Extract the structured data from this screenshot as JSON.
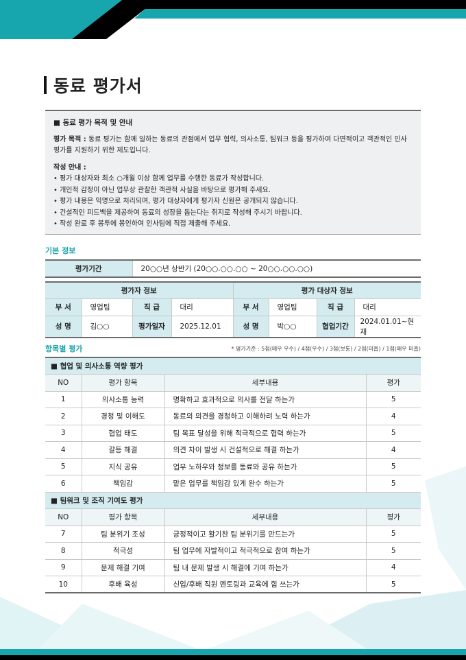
{
  "colors": {
    "teal": "#1aa3ad",
    "label_bg": "#d4ecef",
    "black": "#000000"
  },
  "title": "동료 평가서",
  "guide": {
    "heading": "■ 동료 평가 목적 및 안내",
    "purpose_label": "평가 목적 :",
    "purpose_text": " 동료 평가는 함께 일하는 동료의 관점에서 업무 협력, 의사소통, 팀워크 등을 평가하여 다면적이고 객관적인 인사평가를 지원하기 위한 제도입니다.",
    "instructions_label": "작성 안내 :",
    "instructions": [
      "평가 대상자와 최소 ○개월 이상 함께 업무를 수행한 동료가 작성합니다.",
      "개인적 감정이 아닌 업무상 관찰한 객관적 사실을 바탕으로 평가해 주세요.",
      "평가 내용은 익명으로 처리되며, 평가 대상자에게 평가자 신원은 공개되지 않습니다.",
      "건설적인 피드백을 제공하여 동료의 성장을 돕는다는 취지로 작성해 주시기 바랍니다.",
      "작성 완료 후 봉투에 봉인하여 인사팀에 직접 제출해 주세요."
    ]
  },
  "basic": {
    "section": "기본 정보",
    "period_label": "평가기간",
    "period_value": "20○○년 상반기 (20○○.○○.○○ ~ 20○○.○○.○○)",
    "evaluator_header": "평가자 정보",
    "target_header": "평가 대상자 정보",
    "dept_label": "부 서",
    "rank_label": "직 급",
    "name_label": "성 명",
    "evaluator": {
      "dept": "영업팀",
      "rank": "대리",
      "name": "김○○",
      "date_label": "평가일자",
      "date": "2025.12.01"
    },
    "target": {
      "dept": "영업팀",
      "rank": "대리",
      "name": "박○○",
      "period_label": "협업기간",
      "period": "2024.01.01~현재"
    }
  },
  "evaluation": {
    "section": "항목별 평가",
    "note": "* 평가기준 : 5점(매우 우수) / 4점(우수) / 3점(보통) / 2점(미흡) / 1점(매우 미흡)",
    "columns": [
      "NO",
      "평가 항목",
      "세부내용",
      "평가"
    ],
    "groups": [
      {
        "title": "■ 협업 및 의사소통 역량 평가",
        "rows": [
          [
            "1",
            "의사소통 능력",
            "명확하고 효과적으로 의사를 전달 하는가",
            "5"
          ],
          [
            "2",
            "경청 및 이해도",
            "동료의 의견을 경청하고 이해하려 노력 하는가",
            "4"
          ],
          [
            "3",
            "협업 태도",
            "팀 목표 달성을 위해 적극적으로 협력 하는가",
            "5"
          ],
          [
            "4",
            "갈등 해결",
            "의견 차이 발생 시 건설적으로 해결 하는가",
            "4"
          ],
          [
            "5",
            "지식 공유",
            "업무 노하우와 정보를 동료와 공유 하는가",
            "5"
          ],
          [
            "6",
            "책임감",
            "맡은 업무를 책임감 있게 완수 하는가",
            "5"
          ]
        ]
      },
      {
        "title": "■ 팀워크 및 조직 기여도 평가",
        "rows": [
          [
            "7",
            "팀 분위기 조성",
            "긍정적이고 활기찬 팀 분위기를 만드는가",
            "5"
          ],
          [
            "8",
            "적극성",
            "팀 업무에 자발적이고 적극적으로 참여 하는가",
            "5"
          ],
          [
            "9",
            "문제 해결 기여",
            "팀 내 문제 발생 시 해결에 기여 하는가",
            "4"
          ],
          [
            "10",
            "후배 육성",
            "신입/후배 직원 멘토링과 교육에 힘 쓰는가",
            "5"
          ]
        ]
      }
    ]
  }
}
